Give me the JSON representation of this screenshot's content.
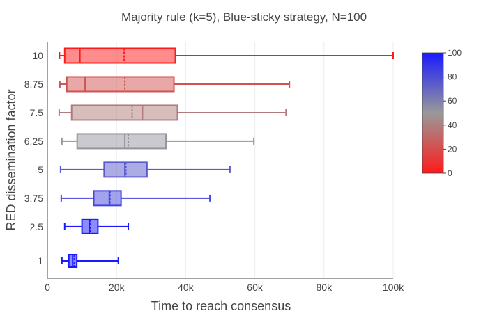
{
  "chart_data": {
    "type": "box",
    "orientation": "horizontal",
    "title": "Majority rule (k=5), Blue-sticky strategy, N=100",
    "xlabel": "Time to reach consensus",
    "ylabel": "RED dissemination factor",
    "xlim": [
      0,
      100000
    ],
    "x_ticks": [
      0,
      20000,
      40000,
      60000,
      80000,
      100000
    ],
    "x_tick_labels": [
      "0",
      "20k",
      "40k",
      "60k",
      "80k",
      "100k"
    ],
    "grid": "vertical",
    "categories": [
      "1",
      "2.5",
      "3.75",
      "5",
      "6.25",
      "7.5",
      "8.75",
      "10"
    ],
    "category_values": [
      1,
      2.5,
      3.75,
      5,
      6.25,
      7.5,
      8.75,
      10
    ],
    "series": [
      {
        "category": "1",
        "min": 4200,
        "q1": 6200,
        "median": 7300,
        "mean": 7800,
        "q3": 8500,
        "max": 20500,
        "color_value": 100
      },
      {
        "category": "2.5",
        "min": 5000,
        "q1": 10000,
        "median": 12100,
        "mean": 12300,
        "q3": 14600,
        "max": 23400,
        "color_value": 100
      },
      {
        "category": "3.75",
        "min": 4000,
        "q1": 13400,
        "median": 17900,
        "mean": 18100,
        "q3": 21300,
        "max": 47000,
        "color_value": 83
      },
      {
        "category": "5",
        "min": 3800,
        "q1": 16400,
        "median": 22400,
        "mean": 22700,
        "q3": 28800,
        "max": 52800,
        "color_value": 75
      },
      {
        "category": "6.25",
        "min": 4200,
        "q1": 8600,
        "median": 22400,
        "mean": 23400,
        "q3": 34300,
        "max": 59700,
        "color_value": 52
      },
      {
        "category": "7.5",
        "min": 3400,
        "q1": 7000,
        "median": 27500,
        "mean": 24500,
        "q3": 37600,
        "max": 69000,
        "color_value": 38
      },
      {
        "category": "8.75",
        "min": 3600,
        "q1": 5600,
        "median": 10900,
        "mean": 22400,
        "q3": 36600,
        "max": 70000,
        "color_value": 22
      },
      {
        "category": "10",
        "min": 3500,
        "q1": 5000,
        "median": 9400,
        "mean": 22200,
        "q3": 37000,
        "max": 100000,
        "color_value": 0
      }
    ],
    "colorbar": {
      "min": 0,
      "max": 100,
      "ticks": [
        0,
        20,
        40,
        60,
        80,
        100
      ],
      "colorscale": [
        "#ff1a1a",
        "#999999",
        "#1a1aff"
      ]
    }
  }
}
